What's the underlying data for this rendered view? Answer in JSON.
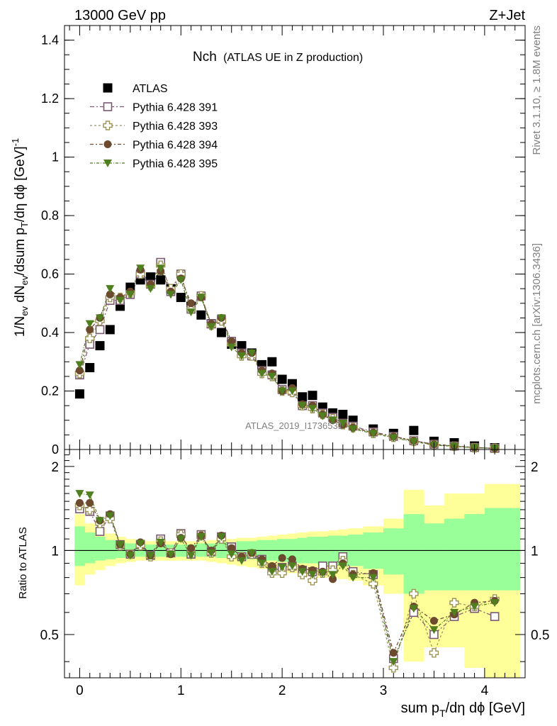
{
  "header": {
    "left": "13000 GeV pp",
    "right": "Z+Jet"
  },
  "side": {
    "rivet": "Rivet 3.1.10, ≥ 1.8M events",
    "mcplots": "mcplots.cern.ch [arXiv:1306.3436]"
  },
  "chart_data": [
    {
      "type": "scatter",
      "panel": "main",
      "title": "Nch",
      "subtitle": "(ATLAS UE in Z production)",
      "watermark": "ATLAS_2019_I1736531",
      "ylabel": "1/N_ev dN_ev/dsum p_T/dη dϕ [GeV]^-1",
      "xlim": [
        -0.15,
        4.4
      ],
      "ylim": [
        0,
        1.45
      ],
      "yticks": [
        0,
        0.2,
        0.4,
        0.6,
        0.8,
        1,
        1.2,
        1.4
      ],
      "ytick_labels": [
        "0",
        "0.2",
        "0.4",
        "0.6",
        "0.8",
        "1",
        "1.2",
        "1.4"
      ],
      "legend_position": "top-left",
      "series": [
        {
          "name": "ATLAS",
          "color": "#000000",
          "marker": "square-filled",
          "x": [
            0,
            0.1,
            0.2,
            0.3,
            0.4,
            0.5,
            0.6,
            0.7,
            0.8,
            0.9,
            1.0,
            1.1,
            1.2,
            1.3,
            1.4,
            1.5,
            1.6,
            1.7,
            1.8,
            1.9,
            2.0,
            2.1,
            2.2,
            2.3,
            2.4,
            2.5,
            2.6,
            2.7,
            2.9,
            3.1,
            3.3,
            3.5,
            3.7,
            3.9,
            4.1
          ],
          "values": [
            0.19,
            0.28,
            0.355,
            0.41,
            0.49,
            0.555,
            0.58,
            0.59,
            0.58,
            0.55,
            0.52,
            0.49,
            0.46,
            0.43,
            0.4,
            0.36,
            0.355,
            0.33,
            0.29,
            0.3,
            0.24,
            0.225,
            0.18,
            0.185,
            0.145,
            0.125,
            0.12,
            0.1,
            0.07,
            0.055,
            0.065,
            0.028,
            0.023,
            0.012,
            0.006
          ]
        },
        {
          "name": "Pythia 6.428 391",
          "color": "#7b5a72",
          "marker": "square-open",
          "x": [
            0,
            0.1,
            0.2,
            0.3,
            0.4,
            0.5,
            0.6,
            0.7,
            0.8,
            0.9,
            1.0,
            1.1,
            1.2,
            1.3,
            1.4,
            1.5,
            1.6,
            1.7,
            1.8,
            1.9,
            2.0,
            2.1,
            2.2,
            2.3,
            2.4,
            2.5,
            2.6,
            2.7,
            2.9,
            3.1,
            3.3,
            3.5,
            3.7,
            3.9,
            4.1
          ],
          "values": [
            0.255,
            0.36,
            0.41,
            0.51,
            0.51,
            0.53,
            0.6,
            0.565,
            0.64,
            0.54,
            0.6,
            0.48,
            0.525,
            0.43,
            0.445,
            0.37,
            0.33,
            0.32,
            0.27,
            0.255,
            0.205,
            0.2,
            0.15,
            0.15,
            0.125,
            0.11,
            0.09,
            0.08,
            0.06,
            0.045,
            0.03,
            0.018,
            0.012,
            0.007,
            0.004
          ]
        },
        {
          "name": "Pythia 6.428 393",
          "color": "#9c9356",
          "marker": "cross-open",
          "x": [
            0,
            0.1,
            0.2,
            0.3,
            0.4,
            0.5,
            0.6,
            0.7,
            0.8,
            0.9,
            1.0,
            1.1,
            1.2,
            1.3,
            1.4,
            1.5,
            1.6,
            1.7,
            1.8,
            1.9,
            2.0,
            2.1,
            2.2,
            2.3,
            2.4,
            2.5,
            2.6,
            2.7,
            2.9,
            3.1,
            3.3,
            3.5,
            3.7,
            3.9,
            4.1
          ],
          "values": [
            0.26,
            0.38,
            0.44,
            0.52,
            0.52,
            0.535,
            0.6,
            0.56,
            0.63,
            0.55,
            0.6,
            0.48,
            0.525,
            0.425,
            0.44,
            0.36,
            0.32,
            0.32,
            0.26,
            0.25,
            0.2,
            0.195,
            0.15,
            0.14,
            0.12,
            0.105,
            0.085,
            0.075,
            0.055,
            0.042,
            0.028,
            0.016,
            0.011,
            0.006,
            0.004
          ]
        },
        {
          "name": "Pythia 6.428 394",
          "color": "#6b4a2e",
          "marker": "circle-filled",
          "x": [
            0,
            0.1,
            0.2,
            0.3,
            0.4,
            0.5,
            0.6,
            0.7,
            0.8,
            0.9,
            1.0,
            1.1,
            1.2,
            1.3,
            1.4,
            1.5,
            1.6,
            1.7,
            1.8,
            1.9,
            2.0,
            2.1,
            2.2,
            2.3,
            2.4,
            2.5,
            2.6,
            2.7,
            2.9,
            3.1,
            3.3,
            3.5,
            3.7,
            3.9,
            4.1
          ],
          "values": [
            0.27,
            0.41,
            0.45,
            0.53,
            0.52,
            0.54,
            0.615,
            0.565,
            0.61,
            0.54,
            0.585,
            0.5,
            0.52,
            0.43,
            0.45,
            0.37,
            0.33,
            0.33,
            0.27,
            0.26,
            0.2,
            0.21,
            0.155,
            0.15,
            0.12,
            0.1,
            0.085,
            0.075,
            0.058,
            0.045,
            0.03,
            0.018,
            0.012,
            0.007,
            0.004
          ]
        },
        {
          "name": "Pythia 6.428 395",
          "color": "#4f7f1f",
          "marker": "triangle-down-filled",
          "x": [
            0,
            0.1,
            0.2,
            0.3,
            0.4,
            0.5,
            0.6,
            0.7,
            0.8,
            0.9,
            1.0,
            1.1,
            1.2,
            1.3,
            1.4,
            1.5,
            1.6,
            1.7,
            1.8,
            1.9,
            2.0,
            2.1,
            2.2,
            2.3,
            2.4,
            2.5,
            2.6,
            2.7,
            2.9,
            3.1,
            3.3,
            3.5,
            3.7,
            3.9,
            4.1
          ],
          "values": [
            0.29,
            0.43,
            0.45,
            0.55,
            0.51,
            0.53,
            0.62,
            0.55,
            0.62,
            0.53,
            0.58,
            0.47,
            0.52,
            0.42,
            0.45,
            0.35,
            0.32,
            0.33,
            0.26,
            0.25,
            0.2,
            0.2,
            0.15,
            0.14,
            0.115,
            0.1,
            0.09,
            0.07,
            0.055,
            0.04,
            0.027,
            0.015,
            0.011,
            0.006,
            0.004
          ]
        }
      ]
    },
    {
      "type": "scatter",
      "panel": "ratio",
      "ylabel": "Ratio to ATLAS",
      "xlabel": "sum p_T/dη dϕ [GeV]",
      "xlim": [
        -0.15,
        4.4
      ],
      "ylim": [
        0.35,
        2.3
      ],
      "xticks": [
        0,
        1,
        2,
        3,
        4
      ],
      "xtick_labels": [
        "0",
        "1",
        "2",
        "3",
        "4"
      ],
      "yticks": [
        0.5,
        1,
        2
      ],
      "ytick_labels": [
        "0.5",
        "1",
        "2"
      ],
      "reference_line": 1,
      "bin_edges": [
        -0.05,
        0.05,
        0.15,
        0.25,
        0.35,
        0.45,
        0.55,
        0.65,
        0.75,
        0.85,
        0.95,
        1.05,
        1.15,
        1.25,
        1.35,
        1.45,
        1.55,
        1.65,
        1.75,
        1.85,
        1.95,
        2.05,
        2.15,
        2.25,
        2.35,
        2.45,
        2.55,
        2.65,
        2.8,
        3.0,
        3.2,
        3.4,
        3.6,
        3.8,
        4.0,
        4.35
      ],
      "band_stat_high": [
        1.22,
        1.16,
        1.12,
        1.09,
        1.07,
        1.06,
        1.05,
        1.05,
        1.05,
        1.05,
        1.05,
        1.05,
        1.06,
        1.06,
        1.07,
        1.07,
        1.08,
        1.08,
        1.09,
        1.09,
        1.1,
        1.1,
        1.11,
        1.12,
        1.12,
        1.13,
        1.13,
        1.14,
        1.16,
        1.2,
        1.35,
        1.25,
        1.3,
        1.35,
        1.42
      ],
      "band_stat_low": [
        0.88,
        0.9,
        0.92,
        0.93,
        0.94,
        0.95,
        0.95,
        0.95,
        0.95,
        0.95,
        0.95,
        0.95,
        0.95,
        0.95,
        0.94,
        0.94,
        0.93,
        0.93,
        0.92,
        0.92,
        0.91,
        0.91,
        0.9,
        0.9,
        0.89,
        0.89,
        0.88,
        0.88,
        0.86,
        0.82,
        0.7,
        0.72,
        0.72,
        0.72,
        0.72
      ],
      "band_syst_high": [
        1.35,
        1.25,
        1.2,
        1.15,
        1.12,
        1.1,
        1.09,
        1.08,
        1.08,
        1.08,
        1.08,
        1.08,
        1.08,
        1.09,
        1.1,
        1.1,
        1.11,
        1.11,
        1.12,
        1.13,
        1.14,
        1.15,
        1.16,
        1.17,
        1.17,
        1.18,
        1.19,
        1.2,
        1.22,
        1.3,
        1.65,
        1.45,
        1.6,
        1.6,
        1.73
      ],
      "band_syst_low": [
        0.75,
        0.82,
        0.85,
        0.88,
        0.9,
        0.91,
        0.92,
        0.92,
        0.92,
        0.92,
        0.92,
        0.92,
        0.92,
        0.91,
        0.9,
        0.89,
        0.88,
        0.87,
        0.86,
        0.85,
        0.84,
        0.83,
        0.82,
        0.81,
        0.8,
        0.8,
        0.79,
        0.78,
        0.75,
        0.7,
        0.4,
        0.45,
        0.45,
        0.38,
        0.35
      ],
      "series": [
        {
          "name": "Pythia 6.428 391",
          "color": "#7b5a72",
          "marker": "square-open",
          "x": [
            0,
            0.1,
            0.2,
            0.3,
            0.4,
            0.5,
            0.6,
            0.7,
            0.8,
            0.9,
            1.0,
            1.1,
            1.2,
            1.3,
            1.4,
            1.5,
            1.6,
            1.7,
            1.8,
            1.9,
            2.0,
            2.1,
            2.2,
            2.3,
            2.4,
            2.5,
            2.6,
            2.7,
            2.9,
            3.1,
            3.3,
            3.5,
            3.7,
            3.9,
            4.1
          ],
          "values": [
            1.41,
            1.38,
            1.17,
            1.33,
            1.05,
            0.97,
            1.05,
            0.96,
            1.1,
            0.98,
            1.15,
            0.97,
            1.14,
            0.99,
            1.12,
            1.03,
            0.95,
            0.97,
            0.93,
            0.86,
            0.87,
            0.88,
            0.85,
            0.84,
            0.88,
            0.88,
            0.95,
            0.84,
            0.82,
            0.41,
            0.6,
            0.5,
            0.58,
            0.62,
            0.58
          ]
        },
        {
          "name": "Pythia 6.428 393",
          "color": "#9c9356",
          "marker": "cross-open",
          "x": [
            0,
            0.1,
            0.2,
            0.3,
            0.4,
            0.5,
            0.6,
            0.7,
            0.8,
            0.9,
            1.0,
            1.1,
            1.2,
            1.3,
            1.4,
            1.5,
            1.6,
            1.7,
            1.8,
            1.9,
            2.0,
            2.1,
            2.2,
            2.3,
            2.4,
            2.5,
            2.6,
            2.7,
            2.9,
            3.1,
            3.3,
            3.5,
            3.7,
            3.9,
            4.1
          ],
          "values": [
            1.45,
            1.4,
            1.25,
            1.3,
            1.04,
            0.97,
            1.04,
            0.95,
            1.08,
            0.98,
            1.14,
            0.98,
            1.13,
            0.98,
            1.1,
            0.95,
            0.95,
            0.97,
            0.9,
            0.83,
            0.83,
            0.87,
            0.82,
            0.78,
            0.83,
            0.85,
            0.92,
            0.82,
            0.76,
            0.38,
            0.7,
            0.43,
            0.65,
            0.63,
            0.67
          ]
        },
        {
          "name": "Pythia 6.428 394",
          "color": "#6b4a2e",
          "marker": "circle-filled",
          "x": [
            0,
            0.1,
            0.2,
            0.3,
            0.4,
            0.5,
            0.6,
            0.7,
            0.8,
            0.9,
            1.0,
            1.1,
            1.2,
            1.3,
            1.4,
            1.5,
            1.6,
            1.7,
            1.8,
            1.9,
            2.0,
            2.1,
            2.2,
            2.3,
            2.4,
            2.5,
            2.6,
            2.7,
            2.9,
            3.1,
            3.3,
            3.5,
            3.7,
            3.9,
            4.1
          ],
          "values": [
            1.48,
            1.48,
            1.28,
            1.35,
            1.05,
            0.97,
            1.07,
            0.96,
            1.06,
            0.97,
            1.11,
            1.02,
            1.13,
            1.0,
            1.13,
            1.02,
            0.95,
            0.98,
            0.93,
            0.88,
            0.94,
            0.93,
            0.86,
            0.85,
            0.84,
            0.79,
            0.9,
            0.82,
            0.83,
            0.43,
            0.63,
            0.56,
            0.59,
            0.65,
            0.66
          ]
        },
        {
          "name": "Pythia 6.428 395",
          "color": "#4f7f1f",
          "marker": "triangle-down-filled",
          "x": [
            0,
            0.1,
            0.2,
            0.3,
            0.4,
            0.5,
            0.6,
            0.7,
            0.8,
            0.9,
            1.0,
            1.1,
            1.2,
            1.3,
            1.4,
            1.5,
            1.6,
            1.7,
            1.8,
            1.9,
            2.0,
            2.1,
            2.2,
            2.3,
            2.4,
            2.5,
            2.6,
            2.7,
            2.9,
            3.1,
            3.3,
            3.5,
            3.7,
            3.9,
            4.1
          ],
          "values": [
            1.6,
            1.58,
            1.28,
            1.33,
            1.05,
            0.96,
            1.06,
            0.96,
            1.07,
            0.97,
            1.1,
            0.96,
            1.12,
            0.98,
            1.12,
            0.97,
            0.92,
            0.98,
            0.9,
            0.84,
            0.87,
            0.88,
            0.84,
            0.82,
            0.83,
            0.82,
            0.88,
            0.8,
            0.8,
            0.4,
            0.62,
            0.52,
            0.6,
            0.63,
            0.65
          ]
        }
      ]
    }
  ]
}
